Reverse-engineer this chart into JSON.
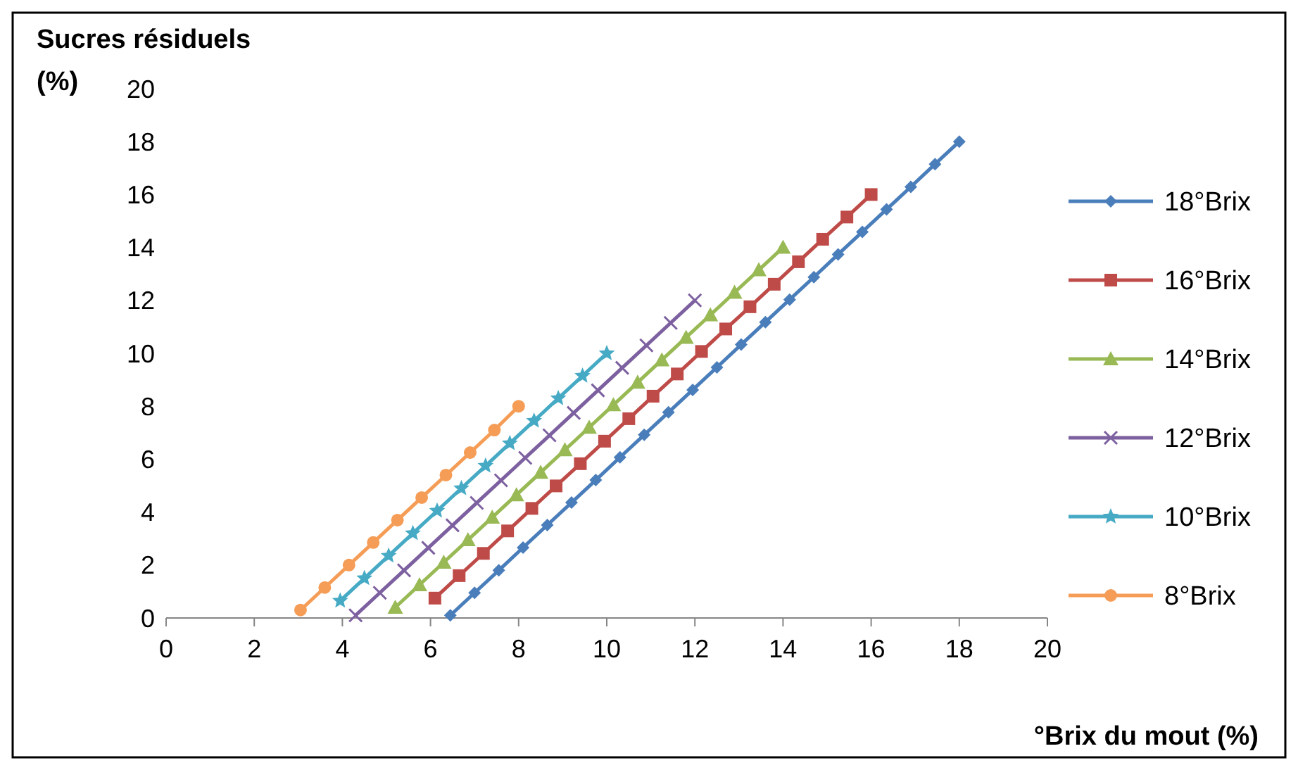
{
  "chart_data": {
    "type": "line",
    "ylabel": "Sucres résiduels (%)",
    "xlabel": "°Brix du mout (%)",
    "xlim": [
      0,
      20
    ],
    "xticks": [
      0,
      2,
      4,
      6,
      8,
      10,
      12,
      14,
      16,
      18,
      20
    ],
    "ylim": [
      0,
      20
    ],
    "yticks": [
      0,
      2,
      4,
      6,
      8,
      10,
      12,
      14,
      16,
      18,
      20
    ],
    "grid": false,
    "legend": "right",
    "line_style": "solid",
    "series": [
      {
        "name": "18°Brix",
        "color": "#4a7ebb",
        "marker": "diamond",
        "x": [
          6.45,
          7.0,
          7.55,
          8.1,
          8.65,
          9.2,
          9.75,
          10.3,
          10.85,
          11.4,
          11.95,
          12.5,
          13.05,
          13.6,
          14.15,
          14.7,
          15.25,
          15.8,
          16.35,
          16.9,
          17.45,
          18.0
        ],
        "values": [
          0.1,
          0.95,
          1.8,
          2.66,
          3.51,
          4.36,
          5.21,
          6.07,
          6.92,
          7.77,
          8.62,
          9.47,
          10.33,
          11.18,
          12.03,
          12.88,
          13.74,
          14.59,
          15.44,
          16.29,
          17.15,
          18.0
        ]
      },
      {
        "name": "16°Brix",
        "color": "#be4b48",
        "marker": "square",
        "x": [
          6.1,
          6.65,
          7.2,
          7.75,
          8.3,
          8.85,
          9.4,
          9.95,
          10.5,
          11.05,
          11.6,
          12.15,
          12.7,
          13.25,
          13.8,
          14.35,
          14.9,
          15.45,
          16.0
        ],
        "values": [
          0.75,
          1.6,
          2.44,
          3.29,
          4.14,
          4.99,
          5.83,
          6.68,
          7.53,
          8.38,
          9.22,
          10.07,
          10.92,
          11.76,
          12.61,
          13.46,
          14.31,
          15.15,
          16.0
        ]
      },
      {
        "name": "14°Brix",
        "color": "#98b954",
        "marker": "triangle",
        "x": [
          5.2,
          5.75,
          6.3,
          6.85,
          7.4,
          7.95,
          8.5,
          9.05,
          9.6,
          10.15,
          10.7,
          11.25,
          11.8,
          12.35,
          12.9,
          13.45,
          14.0
        ],
        "values": [
          0.4,
          1.25,
          2.1,
          2.95,
          3.8,
          4.65,
          5.5,
          6.35,
          7.2,
          8.05,
          8.9,
          9.75,
          10.6,
          11.45,
          12.3,
          13.15,
          14.0
        ]
      },
      {
        "name": "12°Brix",
        "color": "#7d60a0",
        "marker": "cross",
        "x": [
          4.3,
          4.85,
          5.4,
          5.95,
          6.5,
          7.05,
          7.6,
          8.15,
          8.7,
          9.25,
          9.8,
          10.35,
          10.9,
          11.45,
          12.0
        ],
        "values": [
          0.1,
          0.95,
          1.8,
          2.65,
          3.5,
          4.35,
          5.2,
          6.05,
          6.9,
          7.75,
          8.6,
          9.45,
          10.3,
          11.15,
          12.0
        ]
      },
      {
        "name": "10°Brix",
        "color": "#46aac5",
        "marker": "star",
        "x": [
          3.95,
          4.5,
          5.05,
          5.6,
          6.15,
          6.7,
          7.25,
          7.8,
          8.35,
          8.9,
          9.45,
          10.0
        ],
        "values": [
          0.65,
          1.5,
          2.35,
          3.2,
          4.05,
          4.9,
          5.75,
          6.6,
          7.45,
          8.3,
          9.15,
          10.0
        ]
      },
      {
        "name": "8°Brix",
        "color": "#f59d56",
        "marker": "circle",
        "x": [
          3.05,
          3.6,
          4.15,
          4.7,
          5.25,
          5.8,
          6.35,
          6.9,
          7.45,
          8.0
        ],
        "values": [
          0.3,
          1.15,
          2.0,
          2.85,
          3.7,
          4.55,
          5.4,
          6.25,
          7.1,
          8.0
        ]
      }
    ]
  }
}
